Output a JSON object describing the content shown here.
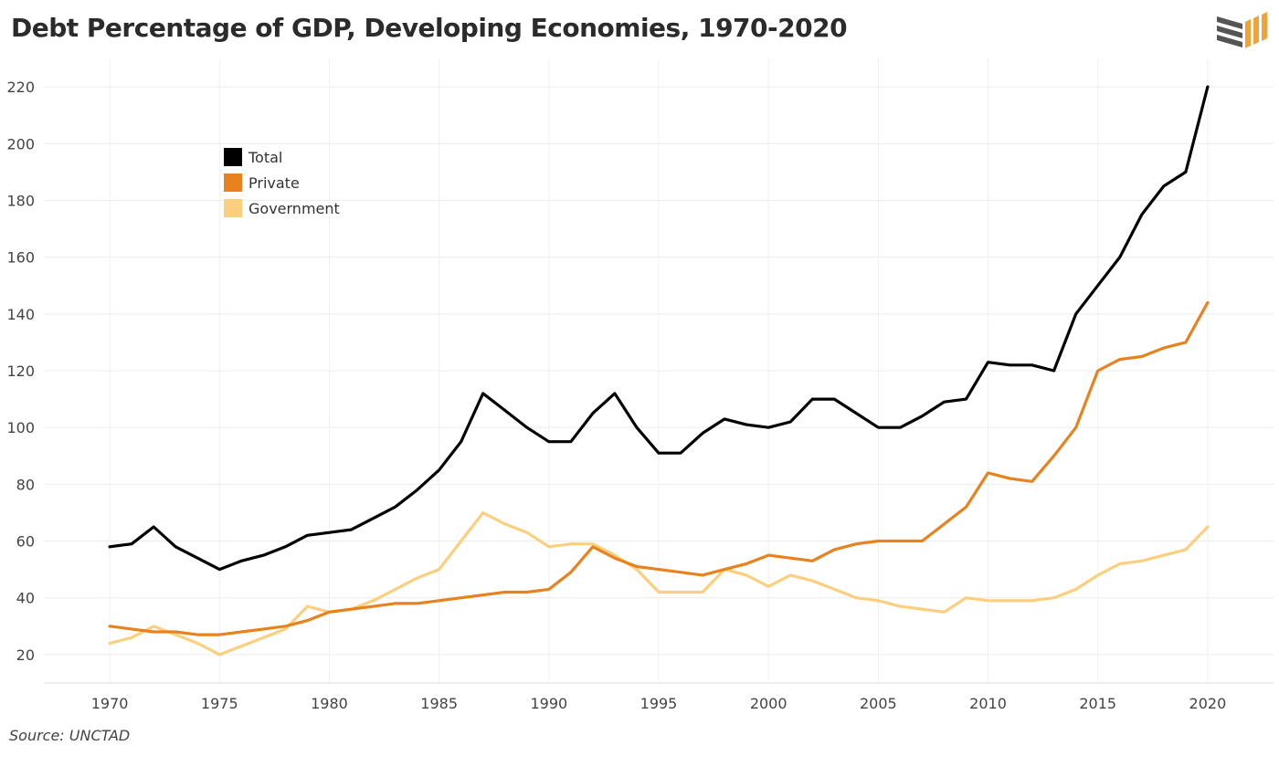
{
  "title": "Debt Percentage of GDP, Developing Economies, 1970-2020",
  "source": "Source: UNCTAD",
  "chart_data": {
    "type": "line",
    "title": "Debt Percentage of GDP, Developing Economies, 1970-2020",
    "xlabel": "",
    "ylabel": "",
    "xlim": [
      1967,
      2023
    ],
    "ylim": [
      10,
      230
    ],
    "x_ticks": [
      1970,
      1975,
      1980,
      1985,
      1990,
      1995,
      2000,
      2005,
      2010,
      2015,
      2020
    ],
    "y_ticks": [
      20,
      40,
      60,
      80,
      100,
      120,
      140,
      160,
      180,
      200,
      220
    ],
    "grid": true,
    "legend_position": "top-left",
    "x": [
      1970,
      1971,
      1972,
      1973,
      1974,
      1975,
      1976,
      1977,
      1978,
      1979,
      1980,
      1981,
      1982,
      1983,
      1984,
      1985,
      1986,
      1987,
      1988,
      1989,
      1990,
      1991,
      1992,
      1993,
      1994,
      1995,
      1996,
      1997,
      1998,
      1999,
      2000,
      2001,
      2002,
      2003,
      2004,
      2005,
      2006,
      2007,
      2008,
      2009,
      2010,
      2011,
      2012,
      2013,
      2014,
      2015,
      2016,
      2017,
      2018,
      2019,
      2020
    ],
    "series": [
      {
        "name": "Total",
        "color": "#000000",
        "values": [
          58,
          59,
          65,
          58,
          54,
          50,
          53,
          55,
          58,
          62,
          63,
          64,
          68,
          72,
          78,
          85,
          95,
          112,
          106,
          100,
          95,
          95,
          105,
          112,
          100,
          91,
          91,
          98,
          103,
          101,
          100,
          102,
          110,
          110,
          105,
          100,
          100,
          104,
          109,
          110,
          123,
          122,
          122,
          120,
          140,
          150,
          160,
          175,
          185,
          190,
          220
        ]
      },
      {
        "name": "Private",
        "color": "#e8821e",
        "values": [
          30,
          29,
          28,
          28,
          27,
          27,
          28,
          29,
          30,
          32,
          35,
          36,
          37,
          38,
          38,
          39,
          40,
          41,
          42,
          42,
          43,
          49,
          58,
          54,
          51,
          50,
          49,
          48,
          50,
          52,
          55,
          54,
          53,
          57,
          59,
          60,
          60,
          60,
          66,
          72,
          84,
          82,
          81,
          90,
          100,
          120,
          124,
          125,
          128,
          130,
          144
        ]
      },
      {
        "name": "Government",
        "color": "#fccf7e",
        "values": [
          24,
          26,
          30,
          27,
          24,
          20,
          23,
          26,
          29,
          37,
          35,
          36,
          39,
          43,
          47,
          50,
          60,
          70,
          66,
          63,
          58,
          59,
          59,
          55,
          50,
          42,
          42,
          42,
          50,
          48,
          44,
          48,
          46,
          43,
          40,
          39,
          37,
          36,
          35,
          40,
          39,
          39,
          39,
          40,
          43,
          48,
          52,
          53,
          55,
          57,
          65
        ]
      }
    ]
  },
  "logo": {
    "colors": [
      "#555555",
      "#f0a33a"
    ]
  }
}
